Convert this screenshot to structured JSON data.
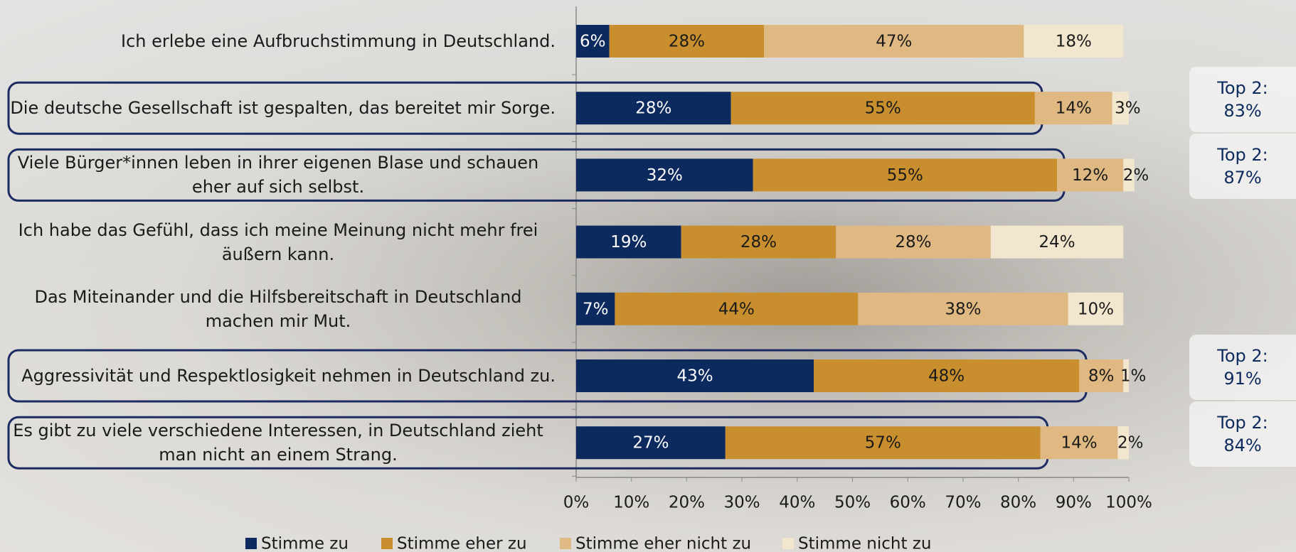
{
  "chart_data": {
    "type": "stacked-barh",
    "categories": [
      "Ich erlebe eine Aufbruchstimmung in Deutschland.",
      "Die deutsche Gesellschaft ist gespalten, das bereitet mir Sorge.",
      "Viele Bürger*innen leben in ihrer eigenen Blase und schauen eher auf sich selbst.",
      "Ich habe das Gefühl, dass ich meine Meinung nicht mehr frei äußern kann.",
      "Das Miteinander und die Hilfsbereitschaft in Deutschland machen mir Mut.",
      "Aggressivität und Respektlosigkeit nehmen in Deutschland zu.",
      "Es gibt zu viele verschiedene Interessen, in Deutschland zieht man nicht an einem Strang."
    ],
    "series": [
      {
        "name": "Stimme zu",
        "color": "#0d2a5e",
        "values": [
          6,
          28,
          32,
          19,
          7,
          43,
          27
        ],
        "value_labels": [
          "6%",
          "28%",
          "32%",
          "19%",
          "7%",
          "43%",
          "27%"
        ]
      },
      {
        "name": "Stimme eher zu",
        "color": "#c98f2e",
        "values": [
          28,
          55,
          55,
          28,
          44,
          48,
          57
        ],
        "value_labels": [
          "28%",
          "55%",
          "55%",
          "28%",
          "44%",
          "48%",
          "57%"
        ]
      },
      {
        "name": "Stimme eher nicht zu",
        "color": "#dfb882",
        "values": [
          47,
          14,
          12,
          28,
          38,
          8,
          14
        ],
        "value_labels": [
          "47%",
          "14%",
          "12%",
          "28%",
          "38%",
          "8%",
          "14%"
        ]
      },
      {
        "name": "Stimme nicht zu",
        "color": "#f3e6cf",
        "values": [
          18,
          3,
          2,
          24,
          10,
          1,
          2
        ],
        "value_labels": [
          "18%",
          "3%",
          "2%",
          "24%",
          "10%",
          "1%",
          "2%"
        ]
      }
    ],
    "top2_labels": [
      null,
      "Top 2:\n83%",
      "Top 2:\n87%",
      null,
      null,
      "Top 2:\n91%",
      "Top 2:\n84%"
    ],
    "xlim": [
      0,
      100
    ],
    "xticks": [
      {
        "value": 0,
        "label": "0%"
      },
      {
        "value": 10,
        "label": "10%"
      },
      {
        "value": 20,
        "label": "20%"
      },
      {
        "value": 30,
        "label": "30%"
      },
      {
        "value": 40,
        "label": "40%"
      },
      {
        "value": 50,
        "label": "50%"
      },
      {
        "value": 60,
        "label": "60%"
      },
      {
        "value": 70,
        "label": "70%"
      },
      {
        "value": 80,
        "label": "80%"
      },
      {
        "value": 90,
        "label": "90%"
      },
      {
        "value": 100,
        "label": "100%"
      }
    ]
  }
}
